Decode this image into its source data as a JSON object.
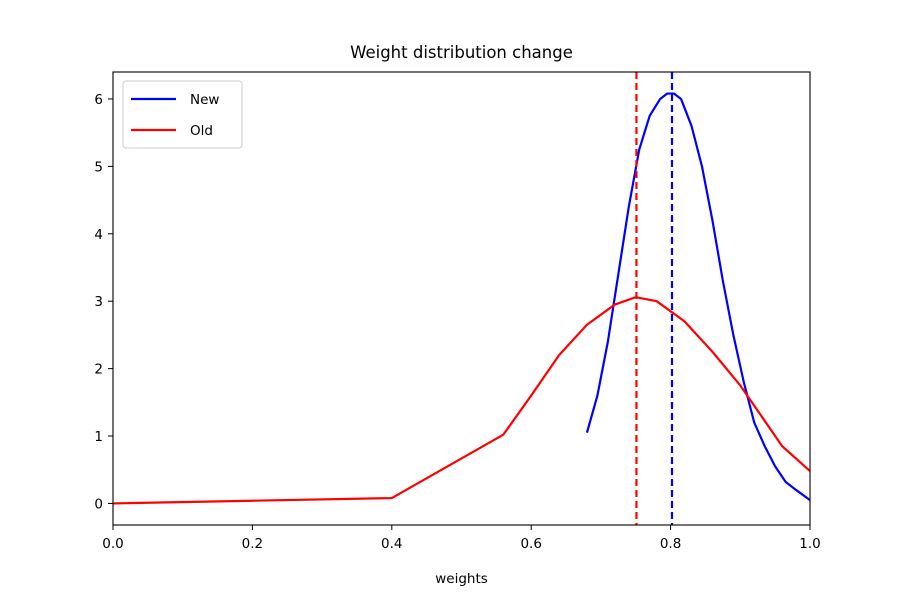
{
  "chart_data": {
    "type": "line",
    "title": "Weight distribution change",
    "xlabel": "weights",
    "ylabel": "",
    "xlim": [
      0.0,
      1.0
    ],
    "ylim": [
      -0.32,
      6.4
    ],
    "xticks": [
      0.0,
      0.2,
      0.4,
      0.6,
      0.8,
      1.0
    ],
    "xtick_labels": [
      "0.0",
      "0.2",
      "0.4",
      "0.6",
      "0.8",
      "1.0"
    ],
    "yticks": [
      0,
      1,
      2,
      3,
      4,
      5,
      6
    ],
    "ytick_labels": [
      "0",
      "1",
      "2",
      "3",
      "4",
      "5",
      "6"
    ],
    "grid": false,
    "legend": {
      "position": "top-left",
      "entries": [
        "New",
        "Old"
      ]
    },
    "series": [
      {
        "name": "New",
        "color": "#0000ff",
        "points": [
          [
            0.68,
            1.05
          ],
          [
            0.695,
            1.6
          ],
          [
            0.71,
            2.4
          ],
          [
            0.725,
            3.4
          ],
          [
            0.74,
            4.4
          ],
          [
            0.755,
            5.25
          ],
          [
            0.77,
            5.75
          ],
          [
            0.785,
            6.0
          ],
          [
            0.795,
            6.08
          ],
          [
            0.805,
            6.08
          ],
          [
            0.815,
            6.0
          ],
          [
            0.83,
            5.6
          ],
          [
            0.845,
            5.0
          ],
          [
            0.86,
            4.2
          ],
          [
            0.875,
            3.3
          ],
          [
            0.89,
            2.5
          ],
          [
            0.905,
            1.8
          ],
          [
            0.92,
            1.2
          ],
          [
            0.935,
            0.85
          ],
          [
            0.95,
            0.55
          ],
          [
            0.965,
            0.32
          ],
          [
            0.98,
            0.2
          ],
          [
            1.0,
            0.05
          ]
        ]
      },
      {
        "name": "Old",
        "color": "#ff0000",
        "points": [
          [
            0.0,
            0.0
          ],
          [
            0.2,
            0.04
          ],
          [
            0.4,
            0.08
          ],
          [
            0.56,
            1.02
          ],
          [
            0.6,
            1.6
          ],
          [
            0.64,
            2.2
          ],
          [
            0.68,
            2.65
          ],
          [
            0.72,
            2.95
          ],
          [
            0.75,
            3.06
          ],
          [
            0.78,
            3.0
          ],
          [
            0.82,
            2.7
          ],
          [
            0.86,
            2.25
          ],
          [
            0.9,
            1.75
          ],
          [
            0.93,
            1.3
          ],
          [
            0.96,
            0.85
          ],
          [
            1.0,
            0.48
          ]
        ]
      }
    ],
    "vlines": [
      {
        "name": "New mean",
        "x": 0.802,
        "color": "#0000ff",
        "style": "dashed"
      },
      {
        "name": "Old mean",
        "x": 0.751,
        "color": "#ff0000",
        "style": "dashed"
      }
    ]
  }
}
